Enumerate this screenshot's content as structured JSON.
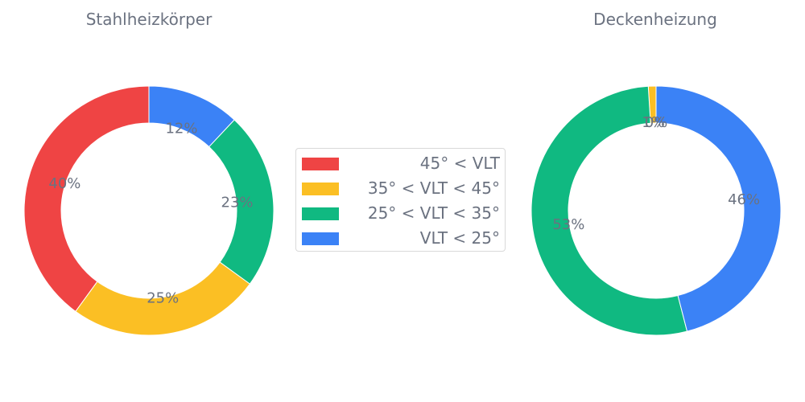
{
  "chart_data": [
    {
      "type": "pie",
      "title": "Stahlheizkörper",
      "categories": [
        "45° < VLT",
        "35° < VLT < 45°",
        "25° < VLT < 35°",
        "VLT < 25°"
      ],
      "values": [
        40,
        25,
        23,
        12
      ],
      "labels": [
        "40%",
        "25%",
        "23%",
        "12%"
      ],
      "colors": [
        "#ef4444",
        "#fbbf24",
        "#10b981",
        "#3b82f6"
      ],
      "donut": true
    },
    {
      "type": "pie",
      "title": "Deckenheizung",
      "categories": [
        "45° < VLT",
        "35° < VLT < 45°",
        "25° < VLT < 35°",
        "VLT < 25°"
      ],
      "values": [
        0,
        1,
        53,
        46
      ],
      "labels": [
        "0%",
        "1%",
        "53%",
        "46%"
      ],
      "colors": [
        "#ef4444",
        "#fbbf24",
        "#10b981",
        "#3b82f6"
      ],
      "donut": true
    }
  ],
  "legend": {
    "placement": "center",
    "items": [
      {
        "label": "45° < VLT",
        "color": "#ef4444"
      },
      {
        "label": "35° < VLT < 45°",
        "color": "#fbbf24"
      },
      {
        "label": "25° < VLT < 35°",
        "color": "#10b981"
      },
      {
        "label": "VLT < 25°",
        "color": "#3b82f6"
      }
    ]
  }
}
